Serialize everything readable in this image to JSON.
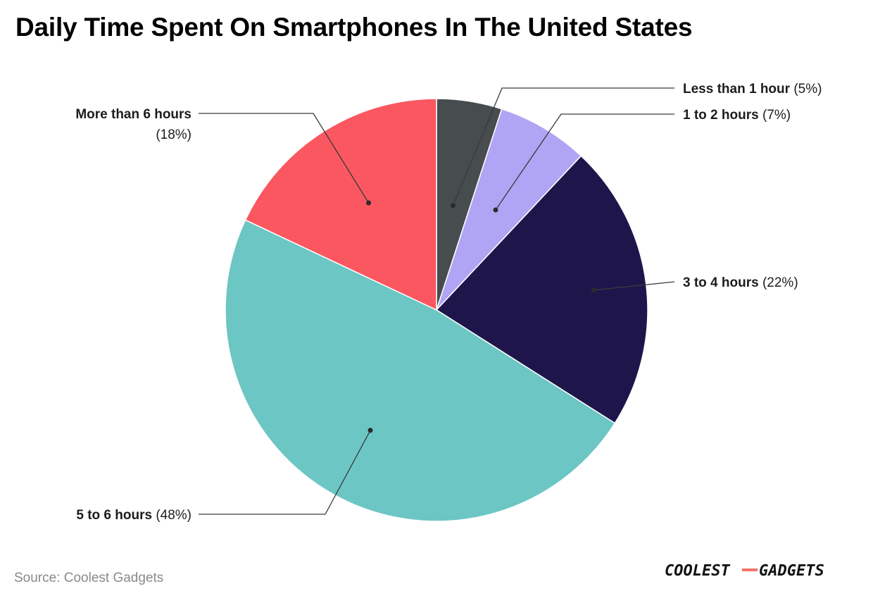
{
  "title": "Daily Time Spent On Smartphones In The United States",
  "source": "Source: Coolest Gadgets",
  "logo": {
    "text": "COOLEST-GADGETS",
    "text_left": "COOLEST",
    "text_right": "GADGETS",
    "accent": "#f4736a"
  },
  "chart_data": {
    "type": "pie",
    "title": "Daily Time Spent On Smartphones In The United States",
    "start_angle": "12 o'clock, clockwise",
    "slices": [
      {
        "label": "Less than 1 hour",
        "value": 5,
        "value_label": "(5%)",
        "color": "#474c4f"
      },
      {
        "label": "1 to 2 hours",
        "value": 7,
        "value_label": "(7%)",
        "color": "#b0a4f4"
      },
      {
        "label": "3 to 4 hours",
        "value": 22,
        "value_label": "(22%)",
        "color": "#1e164b"
      },
      {
        "label": "5 to 6 hours",
        "value": 48,
        "value_label": "(48%)",
        "color": "#6cc6c3"
      },
      {
        "label": "More than 6 hours",
        "value": 18,
        "value_label": "(18%)",
        "color": "#fa5760"
      }
    ]
  }
}
